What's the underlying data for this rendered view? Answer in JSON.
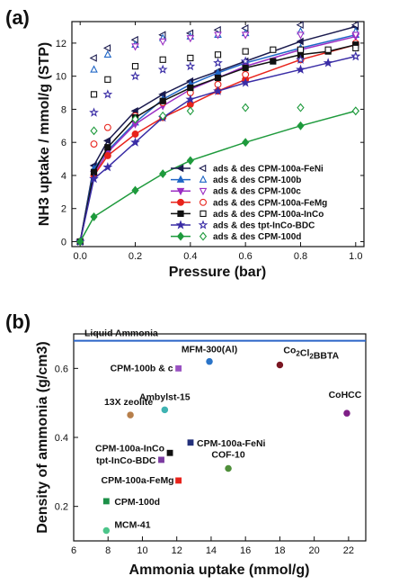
{
  "chart_data": [
    {
      "panel_label": "(a)",
      "type": "line",
      "xlabel": "Pressure (bar)",
      "ylabel": "NH3 uptake / mmol/g (STP)",
      "xlim": [
        -0.03,
        1.03
      ],
      "ylim": [
        -0.3,
        13.3
      ],
      "xticks": [
        0.0,
        0.2,
        0.4,
        0.6,
        0.8,
        1.0
      ],
      "yticks": [
        0,
        2,
        4,
        6,
        8,
        10,
        12
      ],
      "legend_position": "lower-right",
      "series": [
        {
          "name": "ads & des CPM-100a-FeNi",
          "color": "#1a1a4e",
          "marker": "triangle-left",
          "ads": {
            "x": [
              0,
              0.05,
              0.1,
              0.2,
              0.3,
              0.4,
              0.5,
              0.6,
              0.8,
              1.0
            ],
            "y": [
              0,
              4.6,
              6.1,
              7.9,
              8.9,
              9.7,
              10.3,
              10.9,
              12.1,
              13.0
            ]
          },
          "des": {
            "x": [
              0.05,
              0.1,
              0.2,
              0.3,
              0.4,
              0.5,
              0.6,
              0.8,
              1.0
            ],
            "y": [
              11.1,
              11.7,
              12.2,
              12.5,
              12.6,
              12.8,
              12.9,
              13.1,
              13.1
            ]
          }
        },
        {
          "name": "ads & des CPM-100b",
          "color": "#1f66c6",
          "marker": "triangle-up",
          "ads": {
            "x": [
              0,
              0.05,
              0.1,
              0.2,
              0.3,
              0.4,
              0.5,
              0.6,
              0.8,
              1.0
            ],
            "y": [
              0,
              4.4,
              5.5,
              7.2,
              8.6,
              9.5,
              10.2,
              10.8,
              11.7,
              12.5
            ]
          },
          "des": {
            "x": [
              0.05,
              0.1,
              0.2,
              0.3,
              0.4,
              0.5,
              0.6,
              0.8,
              1.0
            ],
            "y": [
              10.4,
              11.3,
              11.9,
              12.3,
              12.4,
              12.5,
              12.6,
              12.7,
              12.7
            ]
          }
        },
        {
          "name": "ads & des CPM-100c",
          "color": "#9b2fc4",
          "marker": "triangle-down",
          "ads": {
            "x": [
              0,
              0.05,
              0.1,
              0.2,
              0.3,
              0.4,
              0.5,
              0.6,
              0.8,
              1.0
            ],
            "y": [
              0,
              4.1,
              5.4,
              7.1,
              8.2,
              9.2,
              9.9,
              10.6,
              11.6,
              12.4
            ]
          },
          "des": {
            "x": [
              0.2,
              0.3,
              0.4,
              0.5,
              0.6,
              0.8,
              1.0
            ],
            "y": [
              11.8,
              12.1,
              12.3,
              12.5,
              12.5,
              12.5,
              12.5
            ]
          }
        },
        {
          "name": "ads & des CPM-100a-FeMg",
          "color": "#e8231b",
          "marker": "circle",
          "ads": {
            "x": [
              0,
              0.05,
              0.1,
              0.2,
              0.3,
              0.4,
              0.5,
              0.6,
              0.8,
              1.0
            ],
            "y": [
              0,
              4.0,
              5.2,
              6.5,
              7.5,
              8.3,
              9.1,
              9.8,
              11.0,
              11.9
            ]
          },
          "des": {
            "x": [
              0.05,
              0.1,
              0.2,
              0.3,
              0.4,
              0.5,
              0.6,
              0.8,
              1.0
            ],
            "y": [
              5.9,
              6.9,
              7.6,
              8.4,
              9.0,
              9.5,
              10.1,
              11.0,
              12.0
            ]
          }
        },
        {
          "name": "ads & des CPM-100a-InCo",
          "color": "#111111",
          "marker": "square",
          "ads": {
            "x": [
              0,
              0.05,
              0.1,
              0.2,
              0.3,
              0.4,
              0.5,
              0.6,
              0.7,
              0.8,
              0.9,
              1.0
            ],
            "y": [
              0,
              4.2,
              5.7,
              7.5,
              8.5,
              9.3,
              9.9,
              10.5,
              10.9,
              11.3,
              11.5,
              11.9
            ]
          },
          "des": {
            "x": [
              0.05,
              0.1,
              0.2,
              0.3,
              0.4,
              0.5,
              0.6,
              0.7,
              0.8,
              0.9,
              1.0
            ],
            "y": [
              8.9,
              9.8,
              10.6,
              11.0,
              11.1,
              11.3,
              11.5,
              11.6,
              11.6,
              11.6,
              11.7
            ]
          }
        },
        {
          "name": "ads & des tpt-InCo-BDC",
          "color": "#3a2da6",
          "marker": "star",
          "ads": {
            "x": [
              0,
              0.05,
              0.1,
              0.2,
              0.3,
              0.4,
              0.5,
              0.6,
              0.8,
              0.9,
              1.0
            ],
            "y": [
              0,
              3.8,
              4.5,
              6.0,
              7.5,
              8.6,
              9.1,
              9.6,
              10.4,
              10.8,
              11.2
            ]
          },
          "des": {
            "x": [
              0.05,
              0.1,
              0.2,
              0.3,
              0.4,
              0.5,
              0.6,
              0.8,
              1.0
            ],
            "y": [
              7.8,
              8.9,
              10.0,
              10.4,
              10.6,
              10.8,
              10.9,
              11.0,
              11.2
            ]
          }
        },
        {
          "name": "ads & des CPM-100d",
          "color": "#1e9a3c",
          "marker": "diamond",
          "ads": {
            "x": [
              0,
              0.05,
              0.2,
              0.3,
              0.4,
              0.6,
              0.8,
              1.0
            ],
            "y": [
              0,
              1.5,
              3.1,
              4.1,
              4.9,
              6.0,
              7.0,
              7.9
            ]
          },
          "des": {
            "x": [
              0.05,
              0.2,
              0.3,
              0.4,
              0.6,
              0.8,
              1.0
            ],
            "y": [
              6.7,
              7.4,
              7.6,
              7.9,
              8.1,
              8.1,
              7.9
            ]
          }
        }
      ]
    },
    {
      "panel_label": "(b)",
      "type": "scatter",
      "xlabel": "Ammonia uptake (mmol/g)",
      "ylabel": "Density of ammonia (g/cm3)",
      "xlim": [
        6,
        23
      ],
      "ylim": [
        0.1,
        0.7
      ],
      "xticks": [
        6,
        8,
        10,
        12,
        14,
        16,
        18,
        20,
        22
      ],
      "yticks": [
        0.2,
        0.4,
        0.6
      ],
      "reference_line": {
        "label": "Liquid Ammonia",
        "y": 0.68,
        "color": "#2a64c8"
      },
      "points": [
        {
          "label": "MFM-300(Al)",
          "x": 13.9,
          "y": 0.62,
          "color": "#2a74c8",
          "marker": "circle"
        },
        {
          "label": "CPM-100b & c",
          "x": 12.1,
          "y": 0.6,
          "color": "#9a52c2",
          "marker": "square"
        },
        {
          "label": "Co2Cl2BBTA",
          "x": 18.0,
          "y": 0.61,
          "color": "#7a1622",
          "marker": "circle"
        },
        {
          "label": "13X zeolite",
          "x": 9.3,
          "y": 0.465,
          "color": "#b77f4b",
          "marker": "circle"
        },
        {
          "label": "Ambylst-15",
          "x": 11.3,
          "y": 0.48,
          "color": "#3fb3b2",
          "marker": "circle"
        },
        {
          "label": "CoHCC",
          "x": 21.9,
          "y": 0.47,
          "color": "#7e1f86",
          "marker": "circle"
        },
        {
          "label": "CPM-100a-FeNi",
          "x": 12.8,
          "y": 0.385,
          "color": "#23307a",
          "marker": "square"
        },
        {
          "label": "COF-10",
          "x": 15.0,
          "y": 0.31,
          "color": "#4f8f3a",
          "marker": "circle"
        },
        {
          "label": "CPM-100a-InCo",
          "x": 11.6,
          "y": 0.355,
          "color": "#111111",
          "marker": "square"
        },
        {
          "label": "tpt-InCo-BDC",
          "x": 11.1,
          "y": 0.335,
          "color": "#7b3ba0",
          "marker": "square"
        },
        {
          "label": "CPM-100a-FeMg",
          "x": 12.1,
          "y": 0.275,
          "color": "#e8231b",
          "marker": "square"
        },
        {
          "label": "CPM-100d",
          "x": 7.9,
          "y": 0.215,
          "color": "#1c9048",
          "marker": "square"
        },
        {
          "label": "MCM-41",
          "x": 7.9,
          "y": 0.13,
          "color": "#4cc58a",
          "marker": "circle"
        }
      ]
    }
  ]
}
